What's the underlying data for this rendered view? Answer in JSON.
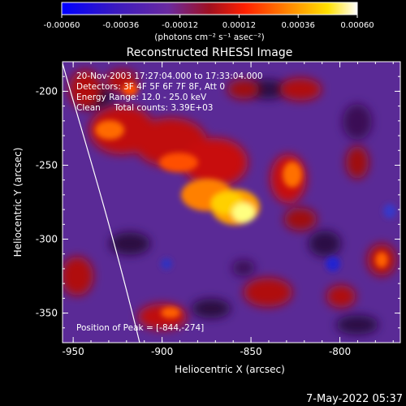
{
  "colorbar": {
    "tick_labels": [
      "-0.00060",
      "-0.00036",
      "-0.00012",
      "0.00012",
      "0.00036",
      "0.00060"
    ],
    "tick_values": [
      -0.0006,
      -0.00036,
      -0.00012,
      0.00012,
      0.00036,
      0.0006
    ],
    "units_label": "(photons cm⁻² s⁻¹ asec⁻²)"
  },
  "image": {
    "title": "Reconstructed RHESSI Image",
    "info_lines": [
      "20-Nov-2003 17:27:04.000 to 17:33:04.000",
      "Detectors: 3F 4F 5F 6F 7F 8F, Att 0",
      "Energy Range: 12.0 - 25.0 keV",
      "Clean     Total counts: 3.39E+03"
    ],
    "peak_label": "Position of Peak = [-844,-274]"
  },
  "axes": {
    "xlabel": "Heliocentric X (arcsec)",
    "ylabel": "Heliocentric Y (arcsec)",
    "x_ticks": [
      "-950",
      "-900",
      "-850",
      "-800"
    ],
    "y_ticks": [
      "-200",
      "-250",
      "-300",
      "-350"
    ],
    "xlim": [
      -956,
      -766
    ],
    "ylim": [
      -370,
      -180
    ]
  },
  "footer": {
    "timestamp": "7-May-2022 05:37"
  },
  "colors": {
    "background": "#000000",
    "foreground": "#ffffff",
    "colormap": [
      "#0000ff",
      "#5a2aa5",
      "#7a2f9a",
      "#b01010",
      "#ff3000",
      "#ff9a00",
      "#ffff00",
      "#ffffff"
    ]
  }
}
